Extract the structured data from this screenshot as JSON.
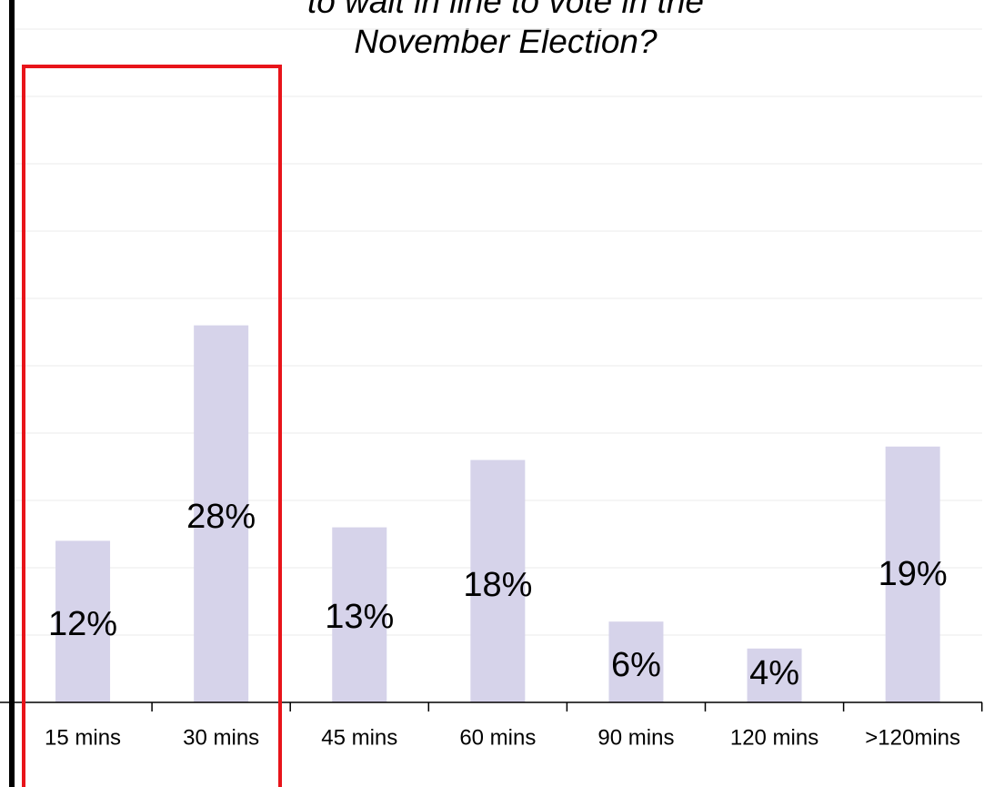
{
  "chart_data": {
    "type": "bar",
    "title": [
      "to wait in line to vote in the",
      "November Election?"
    ],
    "categories": [
      "15 mins",
      "30 mins",
      "45 mins",
      "60 mins",
      "90 mins",
      "120 mins",
      ">120mins"
    ],
    "values": [
      12,
      28,
      13,
      18,
      6,
      4,
      19
    ],
    "value_labels": [
      "12%",
      "28%",
      "13%",
      "18%",
      "6%",
      "4%",
      "19%"
    ],
    "color": "#d6d3ea",
    "ylim": [
      0,
      50
    ],
    "gridlines": [
      5,
      10,
      15,
      20,
      25,
      30,
      35,
      40,
      45,
      50
    ]
  }
}
